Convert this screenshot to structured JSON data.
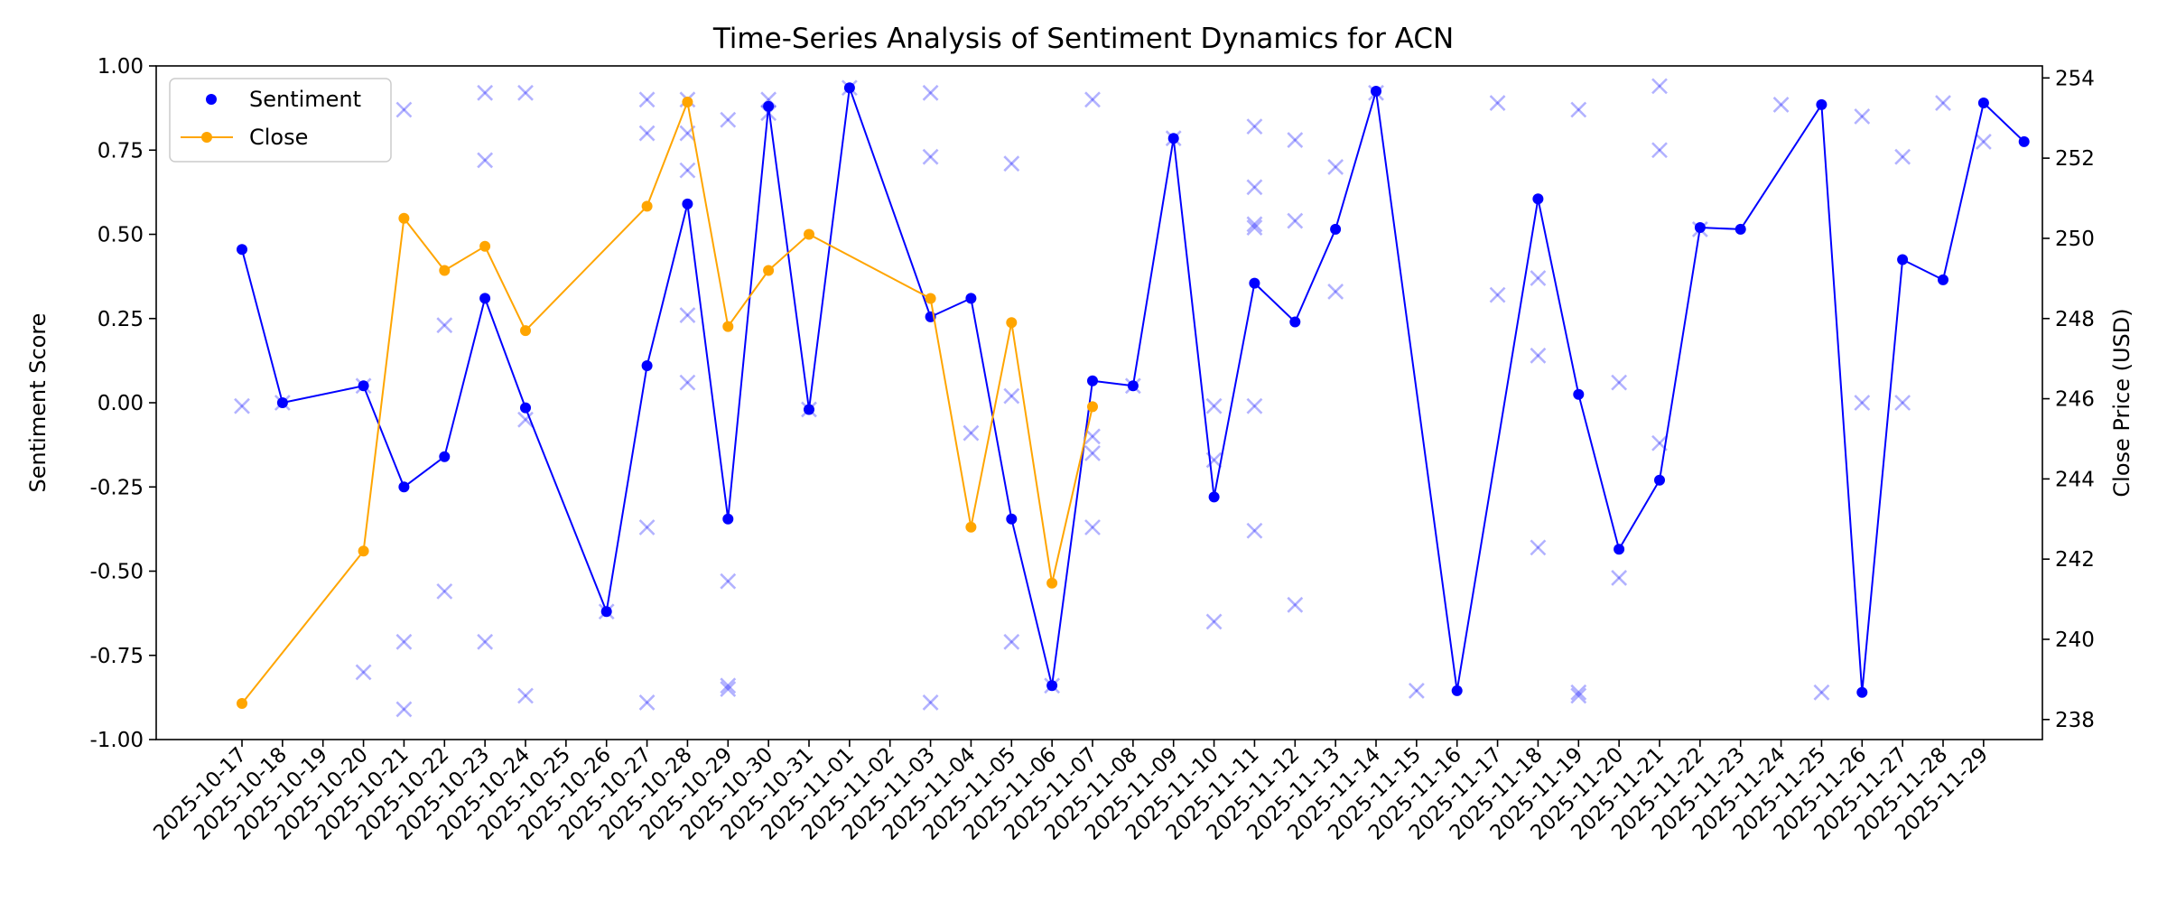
{
  "chart_data": {
    "type": "line",
    "title": "Time-Series Analysis of Sentiment Dynamics for ACN",
    "xlabel": "",
    "ylabel": "Sentiment Score",
    "y2label": "Close Price (USD)",
    "ylim": [
      -1.0,
      1.0
    ],
    "y2lim": [
      237.5,
      254.3
    ],
    "yticks": [
      "-1.00",
      "-0.75",
      "-0.50",
      "-0.25",
      "0.00",
      "0.25",
      "0.50",
      "0.75",
      "1.00"
    ],
    "y2ticks": [
      "238",
      "240",
      "242",
      "244",
      "246",
      "248",
      "250",
      "252",
      "254"
    ],
    "legend_position": "upper-left",
    "grid": false,
    "categories": [
      "2025-10-17",
      "2025-10-18",
      "2025-10-19",
      "2025-10-20",
      "2025-10-21",
      "2025-10-22",
      "2025-10-23",
      "2025-10-24",
      "2025-10-25",
      "2025-10-26",
      "2025-10-27",
      "2025-10-28",
      "2025-10-29",
      "2025-10-30",
      "2025-10-31",
      "2025-11-01",
      "2025-11-02",
      "2025-11-03",
      "2025-11-04",
      "2025-11-05",
      "2025-11-06",
      "2025-11-07",
      "2025-11-08",
      "2025-11-09",
      "2025-11-10",
      "2025-11-11",
      "2025-11-12",
      "2025-11-13",
      "2025-11-14",
      "2025-11-15",
      "2025-11-16",
      "2025-11-17",
      "2025-11-18",
      "2025-11-19",
      "2025-11-20",
      "2025-11-21",
      "2025-11-22",
      "2025-11-23",
      "2025-11-24",
      "2025-11-25",
      "2025-11-26",
      "2025-11-27",
      "2025-11-28",
      "2025-11-29"
    ],
    "series": [
      {
        "name": "Sentiment",
        "axis": "left",
        "color": "#0000ff",
        "x": [
          "2025-10-17",
          "2025-10-18",
          "2025-10-20",
          "2025-10-21",
          "2025-10-22",
          "2025-10-23",
          "2025-10-24",
          "2025-10-26",
          "2025-10-27",
          "2025-10-28",
          "2025-10-29",
          "2025-10-30",
          "2025-10-31",
          "2025-11-01",
          "2025-11-03",
          "2025-11-04",
          "2025-11-05",
          "2025-11-06",
          "2025-11-07",
          "2025-11-08",
          "2025-11-09",
          "2025-11-10",
          "2025-11-11",
          "2025-11-12",
          "2025-11-13",
          "2025-11-14",
          "2025-11-16",
          "2025-11-18",
          "2025-11-19",
          "2025-11-20",
          "2025-11-21",
          "2025-11-22",
          "2025-11-23",
          "2025-11-25",
          "2025-11-26",
          "2025-11-27",
          "2025-11-28",
          "2025-11-29",
          "2025-11-30"
        ],
        "values": [
          0.455,
          0.0,
          0.05,
          -0.25,
          -0.16,
          0.31,
          -0.015,
          -0.62,
          0.11,
          0.59,
          -0.345,
          0.88,
          -0.02,
          0.935,
          0.255,
          0.31,
          -0.345,
          -0.84,
          0.065,
          0.05,
          0.785,
          -0.28,
          0.355,
          0.24,
          0.515,
          0.925,
          -0.855,
          0.605,
          0.025,
          -0.435,
          -0.23,
          0.52,
          0.515,
          0.885,
          -0.86,
          0.425,
          0.365,
          0.89,
          0.775
        ]
      },
      {
        "name": "Close",
        "axis": "right",
        "color": "#ffa500",
        "x": [
          "2025-10-17",
          "2025-10-20",
          "2025-10-21",
          "2025-10-22",
          "2025-10-23",
          "2025-10-24",
          "2025-10-27",
          "2025-10-28",
          "2025-10-29",
          "2025-10-30",
          "2025-10-31",
          "2025-11-03",
          "2025-11-04",
          "2025-11-05",
          "2025-11-06",
          "2025-11-07"
        ],
        "values": [
          238.4,
          242.2,
          250.5,
          249.2,
          249.8,
          247.7,
          250.8,
          253.4,
          247.8,
          249.2,
          250.1,
          248.5,
          242.8,
          247.9,
          241.4,
          245.8
        ]
      }
    ],
    "scatter": {
      "marker": "x",
      "color": "#0000ff",
      "opacity": 0.3,
      "axis": "left",
      "points": [
        [
          "2025-10-17",
          0.93
        ],
        [
          "2025-10-17",
          -0.01
        ],
        [
          "2025-10-18",
          0.0
        ],
        [
          "2025-10-20",
          -0.8
        ],
        [
          "2025-10-20",
          0.05
        ],
        [
          "2025-10-21",
          0.87
        ],
        [
          "2025-10-21",
          -0.71
        ],
        [
          "2025-10-21",
          -0.91
        ],
        [
          "2025-10-22",
          0.23
        ],
        [
          "2025-10-22",
          -0.56
        ],
        [
          "2025-10-23",
          0.92
        ],
        [
          "2025-10-23",
          0.72
        ],
        [
          "2025-10-23",
          -0.71
        ],
        [
          "2025-10-24",
          0.92
        ],
        [
          "2025-10-24",
          -0.05
        ],
        [
          "2025-10-24",
          -0.87
        ],
        [
          "2025-10-26",
          -0.62
        ],
        [
          "2025-10-27",
          0.9
        ],
        [
          "2025-10-27",
          0.8
        ],
        [
          "2025-10-27",
          -0.37
        ],
        [
          "2025-10-27",
          -0.89
        ],
        [
          "2025-10-28",
          0.9
        ],
        [
          "2025-10-28",
          0.8
        ],
        [
          "2025-10-28",
          0.69
        ],
        [
          "2025-10-28",
          0.26
        ],
        [
          "2025-10-28",
          0.06
        ],
        [
          "2025-10-29",
          0.84
        ],
        [
          "2025-10-29",
          -0.53
        ],
        [
          "2025-10-29",
          -0.84
        ],
        [
          "2025-10-29",
          -0.85
        ],
        [
          "2025-10-30",
          0.9
        ],
        [
          "2025-10-30",
          0.86
        ],
        [
          "2025-10-31",
          -0.02
        ],
        [
          "2025-11-01",
          0.935
        ],
        [
          "2025-11-03",
          0.92
        ],
        [
          "2025-11-03",
          0.73
        ],
        [
          "2025-11-03",
          -0.89
        ],
        [
          "2025-11-04",
          -0.09
        ],
        [
          "2025-11-05",
          0.71
        ],
        [
          "2025-11-05",
          0.02
        ],
        [
          "2025-11-05",
          -0.71
        ],
        [
          "2025-11-06",
          -0.84
        ],
        [
          "2025-11-07",
          0.9
        ],
        [
          "2025-11-07",
          -0.1
        ],
        [
          "2025-11-07",
          -0.15
        ],
        [
          "2025-11-07",
          -0.37
        ],
        [
          "2025-11-08",
          0.05
        ],
        [
          "2025-11-09",
          0.785
        ],
        [
          "2025-11-10",
          -0.01
        ],
        [
          "2025-11-10",
          -0.17
        ],
        [
          "2025-11-10",
          -0.65
        ],
        [
          "2025-11-11",
          0.82
        ],
        [
          "2025-11-11",
          0.64
        ],
        [
          "2025-11-11",
          0.53
        ],
        [
          "2025-11-11",
          0.52
        ],
        [
          "2025-11-11",
          -0.01
        ],
        [
          "2025-11-11",
          -0.38
        ],
        [
          "2025-11-12",
          0.78
        ],
        [
          "2025-11-12",
          0.54
        ],
        [
          "2025-11-12",
          -0.6
        ],
        [
          "2025-11-13",
          0.7
        ],
        [
          "2025-11-13",
          0.33
        ],
        [
          "2025-11-14",
          0.92
        ],
        [
          "2025-11-15",
          -0.855
        ],
        [
          "2025-11-17",
          0.89
        ],
        [
          "2025-11-17",
          0.32
        ],
        [
          "2025-11-18",
          0.37
        ],
        [
          "2025-11-18",
          0.14
        ],
        [
          "2025-11-18",
          -0.43
        ],
        [
          "2025-11-19",
          0.87
        ],
        [
          "2025-11-19",
          -0.86
        ],
        [
          "2025-11-19",
          -0.87
        ],
        [
          "2025-11-20",
          0.06
        ],
        [
          "2025-11-20",
          -0.52
        ],
        [
          "2025-11-21",
          0.94
        ],
        [
          "2025-11-21",
          0.75
        ],
        [
          "2025-11-21",
          -0.12
        ],
        [
          "2025-11-22",
          0.515
        ],
        [
          "2025-11-24",
          0.885
        ],
        [
          "2025-11-25",
          -0.86
        ],
        [
          "2025-11-26",
          0.85
        ],
        [
          "2025-11-26",
          0.0
        ],
        [
          "2025-11-27",
          0.73
        ],
        [
          "2025-11-27",
          0.0
        ],
        [
          "2025-11-28",
          0.89
        ],
        [
          "2025-11-29",
          0.775
        ]
      ]
    }
  }
}
